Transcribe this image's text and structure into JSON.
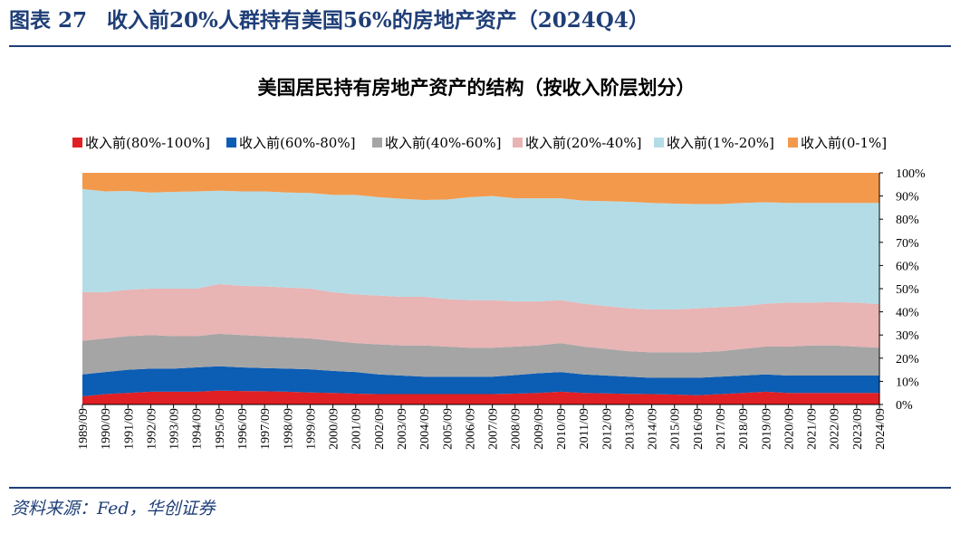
{
  "figure": {
    "label": "图表 27",
    "title": "收入前20%人群持有美国56%的房地产资产（2024Q4）",
    "source": "资料来源：Fed，华创证券"
  },
  "colors": {
    "brand": "#1f3e77",
    "series": [
      "#e02024",
      "#0c5db4",
      "#a5a5a5",
      "#e8b4b4",
      "#b4dce6",
      "#f3994c"
    ]
  },
  "chart_data": {
    "type": "area",
    "stacked": true,
    "title": "美国居民持有房地产资产的结构（按收入阶层划分）",
    "legend_position": "top",
    "x": [
      "1989/09",
      "1990/09",
      "1991/09",
      "1992/09",
      "1993/09",
      "1994/09",
      "1995/09",
      "1996/09",
      "1997/09",
      "1998/09",
      "1999/09",
      "2000/09",
      "2001/09",
      "2002/09",
      "2003/09",
      "2004/09",
      "2005/09",
      "2006/09",
      "2007/09",
      "2008/09",
      "2009/09",
      "2010/09",
      "2011/09",
      "2012/09",
      "2013/09",
      "2014/09",
      "2015/09",
      "2016/09",
      "2017/09",
      "2018/09",
      "2019/09",
      "2020/09",
      "2021/09",
      "2022/09",
      "2023/09",
      "2024/09"
    ],
    "y_axis": {
      "position": "right",
      "min": 0,
      "max": 100,
      "step": 10,
      "unit": "%"
    },
    "grid": false,
    "series": [
      {
        "name": "收入前(80%-100%]",
        "values": [
          3.5,
          4.5,
          5.0,
          5.5,
          5.5,
          5.5,
          6.0,
          5.8,
          5.7,
          5.5,
          5.2,
          5.0,
          4.7,
          4.5,
          4.5,
          4.5,
          4.5,
          4.5,
          4.5,
          4.7,
          5.0,
          5.5,
          5.0,
          4.8,
          4.6,
          4.5,
          4.3,
          4.0,
          4.5,
          5.0,
          5.5,
          5.0,
          5.0,
          5.0,
          5.0,
          5.0
        ]
      },
      {
        "name": "收入前(60%-80%]",
        "values": [
          9.5,
          9.5,
          10.0,
          10.0,
          10.0,
          10.5,
          10.5,
          10.2,
          10.0,
          10.0,
          10.0,
          9.5,
          9.3,
          8.5,
          8.0,
          7.5,
          7.5,
          7.5,
          7.5,
          8.0,
          8.5,
          8.5,
          8.0,
          7.7,
          7.4,
          7.0,
          7.2,
          7.5,
          7.5,
          7.5,
          7.5,
          7.5,
          7.5,
          7.5,
          7.5,
          7.5
        ]
      },
      {
        "name": "收入前(40%-60%]",
        "values": [
          14.5,
          14.5,
          14.5,
          14.5,
          14.0,
          13.5,
          14.0,
          14.0,
          13.8,
          13.5,
          13.3,
          13.0,
          12.5,
          13.0,
          13.0,
          13.5,
          13.0,
          12.5,
          12.5,
          12.3,
          12.0,
          12.5,
          12.0,
          11.5,
          11.0,
          11.0,
          11.0,
          11.0,
          11.0,
          11.5,
          12.0,
          12.5,
          13.0,
          13.0,
          12.5,
          12.0
        ]
      },
      {
        "name": "收入前(20%-40%]",
        "values": [
          21.0,
          20.0,
          20.0,
          20.0,
          20.5,
          20.5,
          21.5,
          21.2,
          21.5,
          21.5,
          21.5,
          21.0,
          21.0,
          21.0,
          21.0,
          21.0,
          20.5,
          20.5,
          20.5,
          19.5,
          19.0,
          18.5,
          18.5,
          18.5,
          18.5,
          18.5,
          18.5,
          19.0,
          19.0,
          18.5,
          18.5,
          19.0,
          18.5,
          18.7,
          19.0,
          18.8
        ]
      },
      {
        "name": "收入前(1%-20%]",
        "values": [
          44.5,
          43.5,
          42.7,
          41.5,
          41.8,
          42.0,
          40.3,
          40.8,
          41.0,
          41.0,
          41.3,
          42.0,
          43.0,
          42.5,
          42.3,
          41.8,
          43.0,
          44.5,
          45.0,
          44.5,
          44.5,
          44.0,
          44.5,
          45.3,
          46.0,
          46.0,
          45.7,
          45.0,
          44.5,
          44.5,
          43.8,
          43.0,
          43.0,
          42.8,
          43.0,
          43.7
        ]
      },
      {
        "name": "收入前(0-1%]",
        "values": [
          7.0,
          8.0,
          7.8,
          8.5,
          8.2,
          8.0,
          7.7,
          8.0,
          8.0,
          8.5,
          8.7,
          9.5,
          9.5,
          10.5,
          11.2,
          11.7,
          11.5,
          10.5,
          10.0,
          11.0,
          11.0,
          11.0,
          12.0,
          12.2,
          12.5,
          13.0,
          13.3,
          13.5,
          13.5,
          13.0,
          12.7,
          13.0,
          13.0,
          13.0,
          13.0,
          13.0
        ]
      }
    ]
  }
}
